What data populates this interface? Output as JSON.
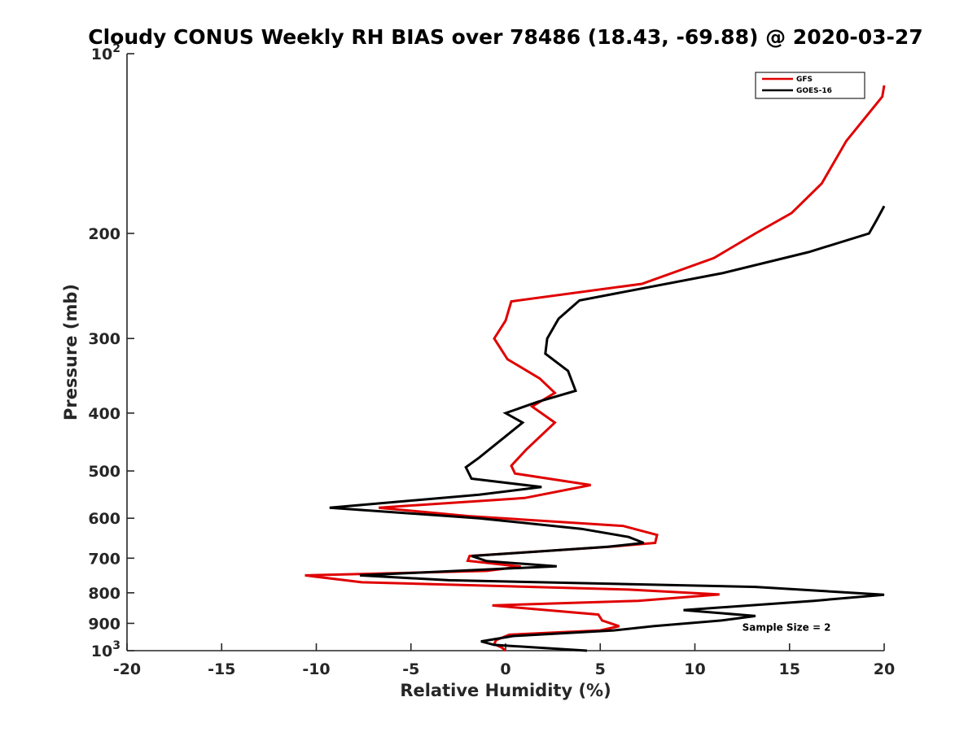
{
  "chart_data": {
    "type": "line",
    "title": "Cloudy CONUS Weekly RH BIAS over 78486 (18.43, -69.88) @ 2020-03-27",
    "xlabel": "Relative Humidity (%)",
    "ylabel": "Pressure (mb)",
    "xlim": [
      -20,
      20
    ],
    "ylim": [
      100,
      1000
    ],
    "y_scale": "log",
    "y_reversed": true,
    "grid": false,
    "legend_position": "top-right",
    "x_ticks": [
      -20,
      -15,
      -10,
      -5,
      0,
      5,
      10,
      15,
      20
    ],
    "x_tick_labels": [
      "-20",
      "-15",
      "-10",
      "-5",
      "0",
      "5",
      "10",
      "15",
      "20"
    ],
    "y_ticks": [
      100,
      200,
      300,
      400,
      500,
      600,
      700,
      800,
      900,
      1000
    ],
    "y_tick_labels": [
      {
        "base": "10",
        "exp": "2"
      },
      {
        "base": "200",
        "exp": ""
      },
      {
        "base": "300",
        "exp": ""
      },
      {
        "base": "400",
        "exp": ""
      },
      {
        "base": "500",
        "exp": ""
      },
      {
        "base": "600",
        "exp": ""
      },
      {
        "base": "700",
        "exp": ""
      },
      {
        "base": "800",
        "exp": ""
      },
      {
        "base": "900",
        "exp": ""
      },
      {
        "base": "10",
        "exp": "3"
      }
    ],
    "series": [
      {
        "name": "GFS",
        "color": "#e00000",
        "points": [
          [
            20.0,
            113
          ],
          [
            19.9,
            118
          ],
          [
            18.0,
            140
          ],
          [
            16.7,
            165
          ],
          [
            15.1,
            185
          ],
          [
            13.2,
            200
          ],
          [
            11.0,
            220
          ],
          [
            7.2,
            243
          ],
          [
            0.3,
            260
          ],
          [
            0.0,
            280
          ],
          [
            -0.6,
            300
          ],
          [
            0.1,
            325
          ],
          [
            1.8,
            350
          ],
          [
            2.6,
            370
          ],
          [
            1.4,
            390
          ],
          [
            2.6,
            415
          ],
          [
            1.1,
            460
          ],
          [
            0.3,
            490
          ],
          [
            0.5,
            505
          ],
          [
            4.5,
            528
          ],
          [
            1.0,
            555
          ],
          [
            -6.7,
            576
          ],
          [
            -2.0,
            595
          ],
          [
            6.2,
            618
          ],
          [
            8.0,
            640
          ],
          [
            7.9,
            660
          ],
          [
            5.5,
            670
          ],
          [
            -1.9,
            694
          ],
          [
            -2.0,
            707
          ],
          [
            0.8,
            723
          ],
          [
            -1.0,
            735
          ],
          [
            -10.6,
            748
          ],
          [
            -7.6,
            768
          ],
          [
            6.5,
            790
          ],
          [
            11.3,
            805
          ],
          [
            7.0,
            825
          ],
          [
            -0.7,
            840
          ],
          [
            4.9,
            870
          ],
          [
            5.1,
            890
          ],
          [
            6.0,
            910
          ],
          [
            5.0,
            925
          ],
          [
            0.2,
            940
          ],
          [
            -0.5,
            960
          ],
          [
            -0.6,
            975
          ],
          [
            -0.2,
            988
          ],
          [
            0.0,
            1000
          ]
        ]
      },
      {
        "name": "GOES-16",
        "color": "#000000",
        "points": [
          [
            20.0,
            180
          ],
          [
            19.6,
            190
          ],
          [
            19.2,
            200
          ],
          [
            16.0,
            215
          ],
          [
            11.5,
            233
          ],
          [
            3.9,
            259
          ],
          [
            2.8,
            278
          ],
          [
            2.2,
            300
          ],
          [
            2.1,
            318
          ],
          [
            3.3,
            340
          ],
          [
            3.7,
            367
          ],
          [
            1.7,
            383
          ],
          [
            0.0,
            400
          ],
          [
            0.9,
            415
          ],
          [
            -0.1,
            440
          ],
          [
            -1.4,
            475
          ],
          [
            -2.1,
            493
          ],
          [
            -1.8,
            515
          ],
          [
            1.9,
            532
          ],
          [
            -1.4,
            548
          ],
          [
            -9.3,
            576
          ],
          [
            -1.4,
            600
          ],
          [
            4.0,
            625
          ],
          [
            6.5,
            645
          ],
          [
            7.3,
            660
          ],
          [
            5.4,
            670
          ],
          [
            -1.8,
            694
          ],
          [
            -1.0,
            708
          ],
          [
            2.7,
            722
          ],
          [
            -7.7,
            748
          ],
          [
            -3.0,
            762
          ],
          [
            13.2,
            782
          ],
          [
            20.0,
            806
          ],
          [
            16.3,
            825
          ],
          [
            9.4,
            855
          ],
          [
            13.2,
            875
          ],
          [
            11.4,
            890
          ],
          [
            7.8,
            910
          ],
          [
            5.7,
            925
          ],
          [
            0.4,
            945
          ],
          [
            -1.3,
            965
          ],
          [
            -0.6,
            978
          ],
          [
            4.3,
            1000
          ]
        ]
      }
    ],
    "annotations": [
      {
        "text": "Sample Size = 2",
        "x": 12.5,
        "y": 915
      }
    ]
  }
}
